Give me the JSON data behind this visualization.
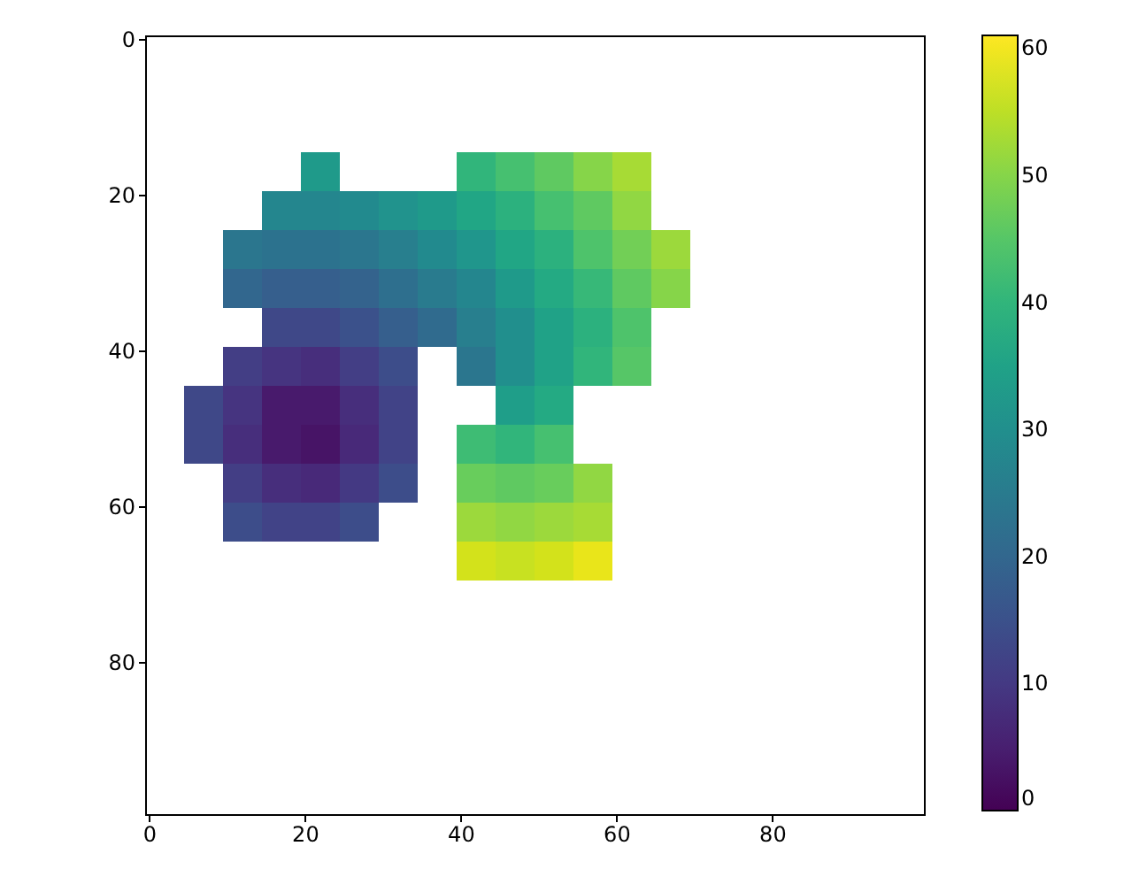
{
  "chart_data": {
    "type": "scatter",
    "x": [
      22,
      42,
      47,
      52,
      57,
      62,
      17,
      22,
      27,
      32,
      37,
      42,
      47,
      52,
      57,
      62,
      12,
      17,
      22,
      27,
      32,
      37,
      42,
      47,
      52,
      57,
      62,
      67,
      12,
      17,
      22,
      27,
      32,
      37,
      42,
      47,
      52,
      57,
      62,
      67,
      17,
      22,
      27,
      32,
      37,
      42,
      47,
      52,
      57,
      62,
      12,
      17,
      22,
      27,
      32,
      42,
      47,
      52,
      57,
      62,
      7,
      12,
      17,
      22,
      27,
      32,
      47,
      52,
      7,
      12,
      17,
      22,
      27,
      32,
      42,
      47,
      52,
      12,
      17,
      22,
      27,
      32,
      42,
      47,
      52,
      57,
      12,
      17,
      22,
      27,
      42,
      47,
      52,
      57,
      42,
      47,
      52,
      57
    ],
    "values": [
      17,
      17,
      17,
      17,
      17,
      17,
      22,
      22,
      22,
      22,
      22,
      22,
      22,
      22,
      22,
      22,
      27,
      27,
      27,
      27,
      27,
      27,
      27,
      27,
      27,
      27,
      27,
      27,
      32,
      32,
      32,
      32,
      32,
      32,
      32,
      32,
      32,
      32,
      32,
      32,
      37,
      37,
      37,
      37,
      37,
      37,
      37,
      37,
      37,
      37,
      42,
      42,
      42,
      42,
      42,
      42,
      42,
      42,
      42,
      42,
      47,
      47,
      47,
      47,
      47,
      47,
      47,
      47,
      52,
      52,
      52,
      52,
      52,
      52,
      52,
      52,
      52,
      57,
      57,
      57,
      57,
      57,
      57,
      57,
      57,
      57,
      62,
      62,
      62,
      62,
      62,
      62,
      62,
      62,
      67,
      67,
      67,
      67
    ],
    "cvalues": [
      33,
      40,
      43,
      46,
      50,
      53,
      28,
      28,
      29,
      31,
      33,
      36,
      39,
      43,
      46,
      51,
      24,
      23,
      23,
      24,
      26,
      29,
      32,
      36,
      39,
      44,
      48,
      52,
      20,
      18,
      18,
      19,
      22,
      25,
      28,
      33,
      37,
      41,
      46,
      50,
      13,
      13,
      15,
      18,
      21,
      26,
      30,
      35,
      39,
      44,
      11,
      9,
      8,
      11,
      14,
      24,
      30,
      35,
      40,
      45,
      13,
      9,
      4,
      4,
      8,
      12,
      34,
      37,
      13,
      8,
      4,
      3,
      7,
      12,
      42,
      40,
      43,
      11,
      8,
      7,
      10,
      14,
      47,
      46,
      47,
      51,
      14,
      12,
      12,
      14,
      52,
      51,
      52,
      53,
      57,
      56,
      57,
      59
    ],
    "marker": "square",
    "xlim": [
      -0.5,
      99.5
    ],
    "ylim": [
      99.5,
      -0.5
    ],
    "xticks": [
      0,
      20,
      40,
      60,
      80
    ],
    "yticks": [
      0,
      20,
      40,
      60,
      80
    ],
    "clim": [
      0,
      61
    ],
    "cticks": [
      0,
      10,
      20,
      30,
      40,
      50,
      60
    ]
  }
}
